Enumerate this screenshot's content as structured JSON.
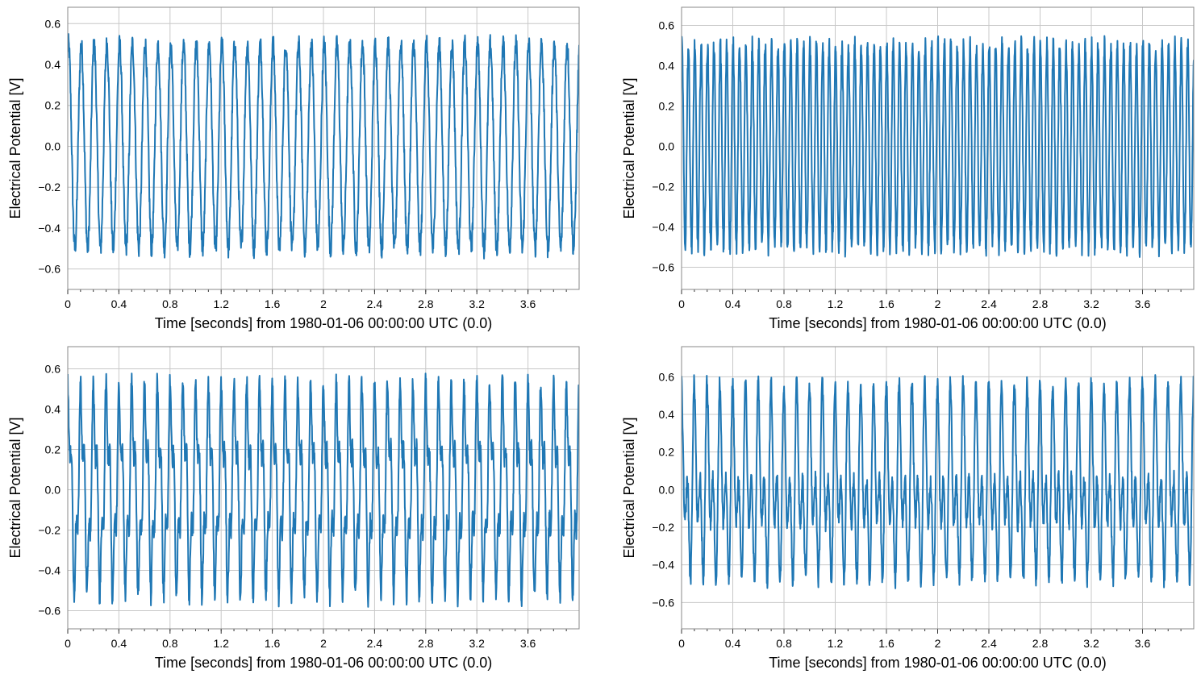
{
  "chart_data": [
    {
      "type": "line",
      "xlabel": "Time [seconds] from 1980-01-06 00:00:00 UTC (0.0)",
      "ylabel": "Electrical Potential [V]",
      "xlim": [
        0,
        4
      ],
      "ylim": [
        -0.7,
        0.68
      ],
      "xticks": [
        "0",
        "0.4",
        "0.8",
        "1.2",
        "1.6",
        "2",
        "2.4",
        "2.8",
        "3.2",
        "3.6"
      ],
      "yticks": [
        "−0.6",
        "−0.4",
        "−0.2",
        "0.0",
        "0.2",
        "0.4",
        "0.6"
      ],
      "grid": true,
      "color": "#1f77b4",
      "signal": {
        "components": [
          {
            "frequency_hz": 10,
            "amplitude": 0.5
          }
        ],
        "noise_amplitude": 0.05,
        "y_min": -0.64,
        "y_max": 0.62
      }
    },
    {
      "type": "line",
      "xlabel": "Time [seconds] from 1980-01-06 00:00:00 UTC (0.0)",
      "ylabel": "Electrical Potential [V]",
      "xlim": [
        0,
        4
      ],
      "ylim": [
        -0.71,
        0.69
      ],
      "xticks": [
        "0",
        "0.4",
        "0.8",
        "1.2",
        "1.6",
        "2",
        "2.4",
        "2.8",
        "3.2",
        "3.6"
      ],
      "yticks": [
        "−0.6",
        "−0.4",
        "−0.2",
        "0.0",
        "0.2",
        "0.4",
        "0.6"
      ],
      "grid": true,
      "color": "#1f77b4",
      "signal": {
        "components": [
          {
            "frequency_hz": 20,
            "amplitude": 0.5
          }
        ],
        "noise_amplitude": 0.05,
        "y_min": -0.65,
        "y_max": 0.62
      }
    },
    {
      "type": "line",
      "xlabel": "Time [seconds] from 1980-01-06 00:00:00 UTC (0.0)",
      "ylabel": "Electrical Potential [V]",
      "xlim": [
        0,
        4
      ],
      "ylim": [
        -0.69,
        0.71
      ],
      "xticks": [
        "0",
        "0.4",
        "0.8",
        "1.2",
        "1.6",
        "2",
        "2.4",
        "2.8",
        "3.2",
        "3.6"
      ],
      "yticks": [
        "−0.6",
        "−0.4",
        "−0.2",
        "0.0",
        "0.2",
        "0.4",
        "0.6"
      ],
      "grid": true,
      "color": "#1f77b4",
      "signal": {
        "components": [
          {
            "frequency_hz": 10,
            "amplitude": 0.4
          },
          {
            "frequency_hz": 30,
            "amplitude": 0.17
          }
        ],
        "noise_amplitude": 0.05,
        "y_min": -0.63,
        "y_max": 0.65
      }
    },
    {
      "type": "line",
      "xlabel": "Time [seconds] from 1980-01-06 00:00:00 UTC (0.0)",
      "ylabel": "Electrical Potential [V]",
      "xlim": [
        0,
        4
      ],
      "ylim": [
        -0.74,
        0.76
      ],
      "xticks": [
        "0",
        "0.4",
        "0.8",
        "1.2",
        "1.6",
        "2",
        "2.4",
        "2.8",
        "3.2",
        "3.6"
      ],
      "yticks": [
        "−0.6",
        "−0.4",
        "−0.2",
        "0.0",
        "0.2",
        "0.4",
        "0.6"
      ],
      "grid": true,
      "color": "#1f77b4",
      "signal": {
        "components": [
          {
            "frequency_hz": 10,
            "amplitude": 0.3
          },
          {
            "frequency_hz": 20,
            "amplitude": 0.3
          }
        ],
        "noise_amplitude": 0.05,
        "y_min": -0.67,
        "y_max": 0.69
      }
    }
  ]
}
